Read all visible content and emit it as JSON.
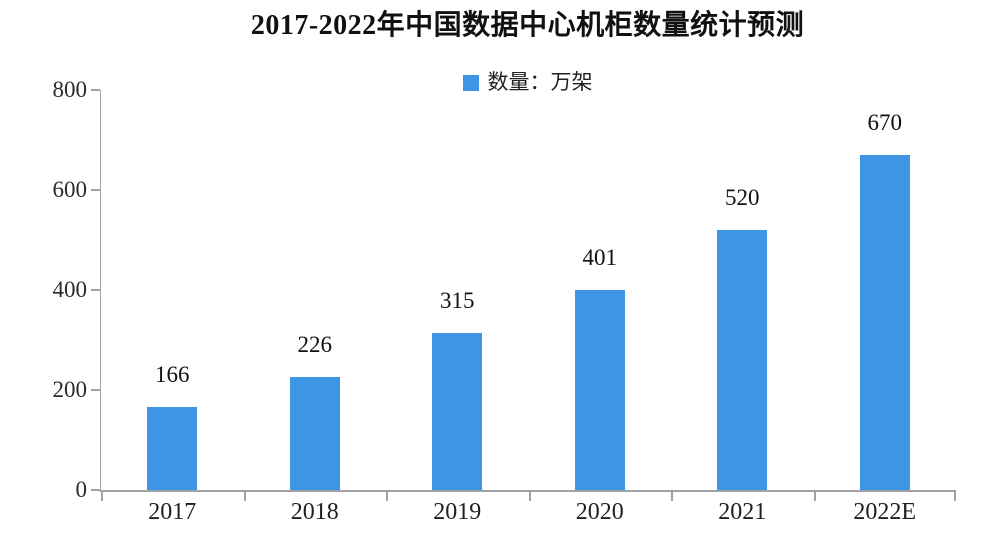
{
  "title": "2017-2022年中国数据中心机柜数量统计预测",
  "legend": {
    "label": "数量：万架",
    "swatch_color": "#3e94e5"
  },
  "chart_data": {
    "type": "bar",
    "title": "2017-2022年中国数据中心机柜数量统计预测",
    "categories": [
      "2017",
      "2018",
      "2019",
      "2020",
      "2021",
      "2022E"
    ],
    "values": [
      166,
      226,
      315,
      401,
      520,
      670
    ],
    "data_labels": [
      "166",
      "226",
      "315",
      "401",
      "520",
      "670"
    ],
    "legend_entries": [
      "数量：万架"
    ],
    "legend_position": "top-center",
    "xlabel": "",
    "ylabel": "",
    "ylim": [
      0,
      800
    ],
    "yticks": [
      0,
      200,
      400,
      600,
      800
    ],
    "grid": false,
    "bar_color": "#3e94e5"
  },
  "colors": {
    "bar": "#3e94e5",
    "axis": "#a0a3a6",
    "text": "#1f1f1f",
    "background": "#ffffff"
  }
}
